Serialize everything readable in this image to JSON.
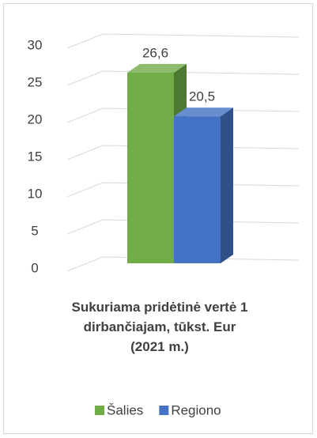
{
  "chart_data": {
    "type": "bar3d",
    "title": "Sukuriama pridėtinė vertė 1 dirbančiajam, tūkst. Eur (2021 m.)",
    "categories": [
      null
    ],
    "series": [
      {
        "name": "Šalies",
        "color": "#70ad47",
        "values": [
          26.6
        ],
        "value_labels": [
          "26,6"
        ]
      },
      {
        "name": "Regiono",
        "color": "#4472c4",
        "values": [
          20.5
        ],
        "value_labels": [
          "20,5"
        ]
      }
    ],
    "ylim": [
      0,
      30
    ],
    "yticks": [
      0,
      5,
      10,
      15,
      20,
      25,
      30
    ],
    "grid": true,
    "legend": "bottom"
  }
}
